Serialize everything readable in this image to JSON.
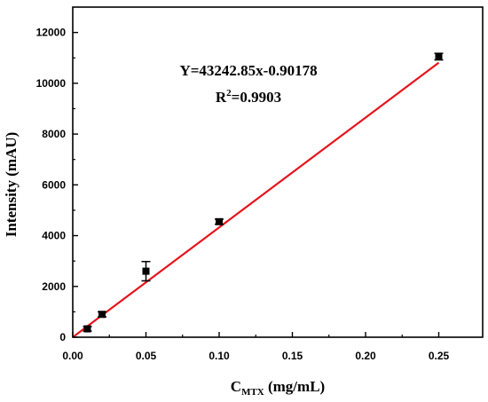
{
  "chart_data": {
    "type": "scatter",
    "xlabel": {
      "main": "C",
      "sub": "MTX",
      "unit": " (mg/mL)"
    },
    "ylabel": "Intensity (mAU)",
    "xlim": [
      0,
      0.28
    ],
    "ylim": [
      0,
      13000
    ],
    "x_ticks": [
      0.0,
      0.05,
      0.1,
      0.15,
      0.2,
      0.25
    ],
    "x_tick_labels": [
      "0.00",
      "0.05",
      "0.10",
      "0.15",
      "0.20",
      "0.25"
    ],
    "y_ticks": [
      0,
      2000,
      4000,
      6000,
      8000,
      10000,
      12000
    ],
    "y_tick_labels": [
      "0",
      "2000",
      "4000",
      "6000",
      "8000",
      "10000",
      "12000"
    ],
    "grid": false,
    "series": [
      {
        "marker": "square",
        "color": "#000000",
        "points": [
          {
            "x": 0.01,
            "y": 330,
            "err": 90
          },
          {
            "x": 0.02,
            "y": 900,
            "err": 100
          },
          {
            "x": 0.05,
            "y": 2600,
            "err": 380
          },
          {
            "x": 0.1,
            "y": 4550,
            "err": 100
          },
          {
            "x": 0.25,
            "y": 11050,
            "err": 130
          }
        ]
      }
    ],
    "fit_line": {
      "color": "#e8141b",
      "slope": 43242.85,
      "intercept": -0.90178,
      "x_range": [
        0,
        0.25
      ]
    },
    "annotations": {
      "equation": "Y=43242.85x-0.90178",
      "r2_prefix": "R",
      "r2_sup": "2",
      "r2_value": "=0.9903"
    }
  }
}
